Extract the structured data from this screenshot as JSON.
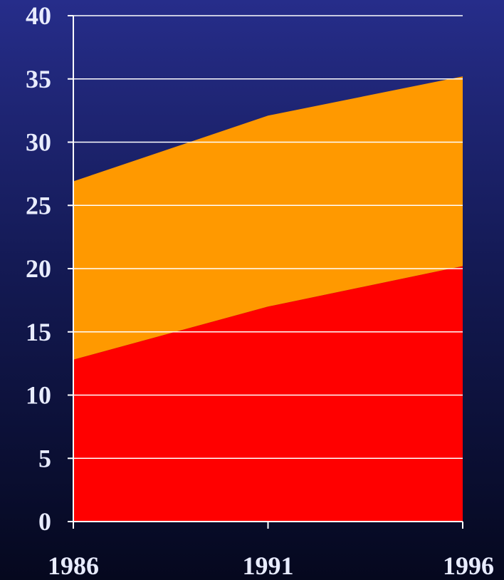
{
  "chart_data": {
    "type": "area",
    "stacked": true,
    "x": [
      "1986",
      "1991",
      "1996"
    ],
    "series": [
      {
        "values": [
          12.8,
          17.0,
          20.2
        ],
        "color": "#ff0000"
      },
      {
        "values": [
          14.1,
          15.1,
          15.0
        ],
        "color": "#ff9900"
      }
    ],
    "ylim": [
      0,
      40
    ],
    "yticks": [
      "0",
      "5",
      "10",
      "15",
      "20",
      "25",
      "30",
      "35",
      "40"
    ],
    "grid": true,
    "legend": "none",
    "title": "",
    "xlabel": "",
    "ylabel": ""
  },
  "colors": {
    "background_top": "#262d8a",
    "background_bottom": "#05081e",
    "axis": "#ffffff",
    "label": "#e8ecff"
  }
}
